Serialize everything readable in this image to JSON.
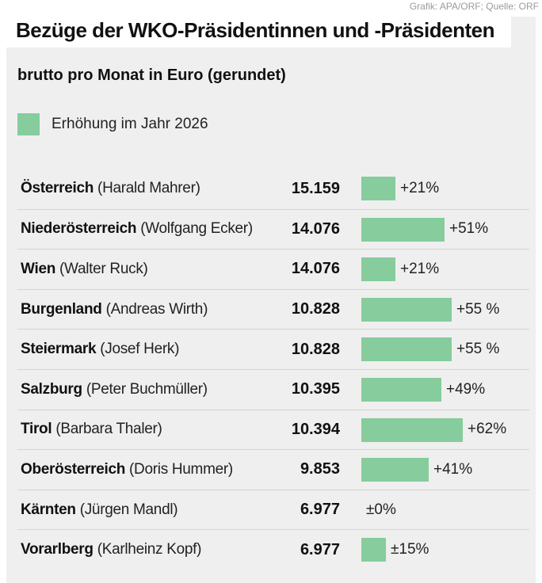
{
  "credit": "Grafik: APA/ORF; Quelle: ORF",
  "colors": {
    "bar": "#86cc9d",
    "background": "#efefef"
  },
  "chart_data": {
    "type": "bar",
    "title": "Bezüge der WKO-Präsidentinnen und -Präsidenten",
    "subtitle": "brutto pro Monat in Euro (gerundet)",
    "legend": [
      "Erhöhung im Jahr 2026"
    ],
    "categories": [
      "Österreich",
      "Niederösterreich",
      "Wien",
      "Burgenland",
      "Steiermark",
      "Salzburg",
      "Tirol",
      "Oberösterreich",
      "Kärnten",
      "Vorarlberg"
    ],
    "presidents": [
      "(Harald Mahrer)",
      "(Wolfgang Ecker)",
      "(Walter Ruck)",
      "(Andreas Wirth)",
      "(Josef Herk)",
      "(Peter Buchmüller)",
      "(Barbara Thaler)",
      "(Doris Hummer)",
      "(Jürgen Mandl)",
      "(Karlheinz Kopf)"
    ],
    "value_labels": [
      "15.159",
      "14.076",
      "14.076",
      "10.828",
      "10.828",
      "10.395",
      "10.394",
      "9.853",
      "6.977",
      "6.977"
    ],
    "values": [
      15159,
      14076,
      14076,
      10828,
      10828,
      10395,
      10394,
      9853,
      6977,
      6977
    ],
    "increase_pct": [
      21,
      51,
      21,
      55,
      55,
      49,
      62,
      41,
      0,
      15
    ],
    "increase_labels": [
      "+21%",
      "+51%",
      "+21%",
      "+55 %",
      "+55 %",
      "+49%",
      "+62%",
      "+41%",
      "±0%",
      "±15%"
    ],
    "xlim": [
      0,
      62
    ]
  }
}
